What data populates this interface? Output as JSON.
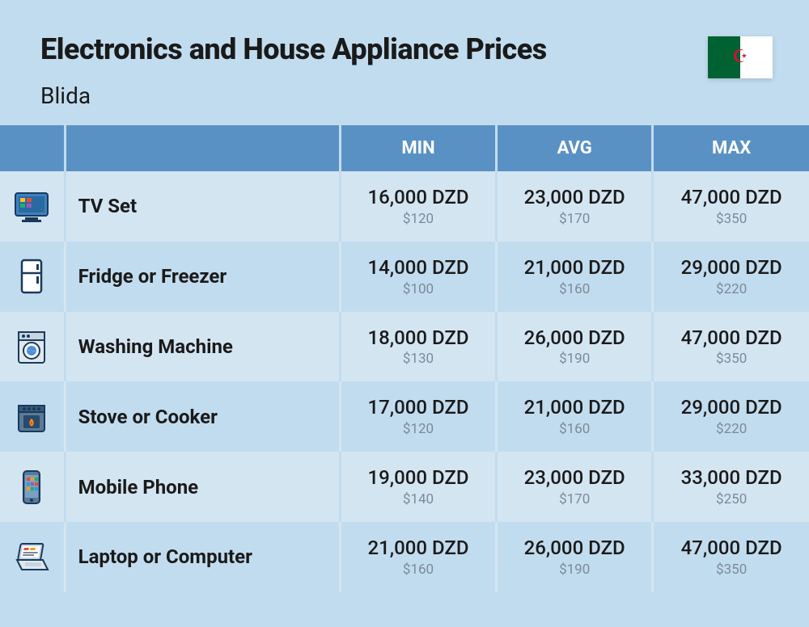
{
  "header": {
    "title": "Electronics and House Appliance Prices",
    "subtitle": "Blida"
  },
  "columns": {
    "min": "MIN",
    "avg": "AVG",
    "max": "MAX"
  },
  "colors": {
    "page_bg": "#c2dcef",
    "header_bg": "#5a91c4",
    "header_text": "#ffffff",
    "row_odd": "#d4e5f2",
    "row_even": "#c2dcef",
    "text_main": "#1a1a1a",
    "text_sub": "#7a8a99",
    "flag_green": "#006233",
    "flag_white": "#ffffff",
    "flag_red": "#d21034"
  },
  "rows": [
    {
      "icon": "tv",
      "name": "TV Set",
      "min_main": "16,000 DZD",
      "min_sub": "$120",
      "avg_main": "23,000 DZD",
      "avg_sub": "$170",
      "max_main": "47,000 DZD",
      "max_sub": "$350"
    },
    {
      "icon": "fridge",
      "name": "Fridge or Freezer",
      "min_main": "14,000 DZD",
      "min_sub": "$100",
      "avg_main": "21,000 DZD",
      "avg_sub": "$160",
      "max_main": "29,000 DZD",
      "max_sub": "$220"
    },
    {
      "icon": "washer",
      "name": "Washing Machine",
      "min_main": "18,000 DZD",
      "min_sub": "$130",
      "avg_main": "26,000 DZD",
      "avg_sub": "$190",
      "max_main": "47,000 DZD",
      "max_sub": "$350"
    },
    {
      "icon": "stove",
      "name": "Stove or Cooker",
      "min_main": "17,000 DZD",
      "min_sub": "$120",
      "avg_main": "21,000 DZD",
      "avg_sub": "$160",
      "max_main": "29,000 DZD",
      "max_sub": "$220"
    },
    {
      "icon": "phone",
      "name": "Mobile Phone",
      "min_main": "19,000 DZD",
      "min_sub": "$140",
      "avg_main": "23,000 DZD",
      "avg_sub": "$170",
      "max_main": "33,000 DZD",
      "max_sub": "$250"
    },
    {
      "icon": "laptop",
      "name": "Laptop or Computer",
      "min_main": "21,000 DZD",
      "min_sub": "$160",
      "avg_main": "26,000 DZD",
      "avg_sub": "$190",
      "max_main": "47,000 DZD",
      "max_sub": "$350"
    }
  ]
}
